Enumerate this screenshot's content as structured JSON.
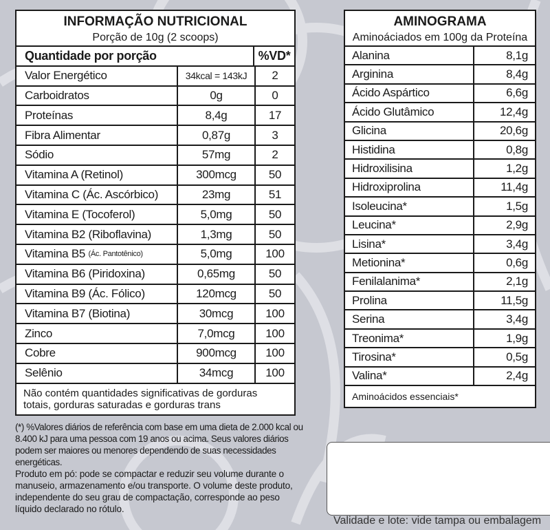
{
  "nutrition": {
    "title": "INFORMAÇÃO NUTRICIONAL",
    "serving": "Porção de 10g (2 scoops)",
    "header": {
      "label": "Quantidade por porção",
      "vd": "%VD*"
    },
    "rows": [
      {
        "name": "Valor Energético",
        "amount": "34kcal = 143kJ",
        "vd": "2"
      },
      {
        "name": "Carboidratos",
        "amount": "0g",
        "vd": "0"
      },
      {
        "name": "Proteínas",
        "amount": "8,4g",
        "vd": "17"
      },
      {
        "name": "Fibra Alimentar",
        "amount": "0,87g",
        "vd": "3"
      },
      {
        "name": "Sódio",
        "amount": "57mg",
        "vd": "2"
      },
      {
        "name": "Vitamina A (Retinol)",
        "amount": "300mcg",
        "vd": "50"
      },
      {
        "name": "Vitamina C (Ác. Ascórbico)",
        "amount": "23mg",
        "vd": "51"
      },
      {
        "name": "Vitamina E (Tocoferol)",
        "amount": "5,0mg",
        "vd": "50"
      },
      {
        "name": "Vitamina B2 (Riboflavina)",
        "amount": "1,3mg",
        "vd": "50"
      },
      {
        "name": "Vitamina B5",
        "name_small": "(Ác. Pantotênico)",
        "amount": "5,0mg",
        "vd": "100"
      },
      {
        "name": "Vitamina B6 (Piridoxina)",
        "amount": "0,65mg",
        "vd": "50"
      },
      {
        "name": "Vitamina B9 (Ác. Fólico)",
        "amount": "120mcg",
        "vd": "50"
      },
      {
        "name": "Vitamina B7 (Biotina)",
        "amount": "30mcg",
        "vd": "100"
      },
      {
        "name": "Zinco",
        "amount": "7,0mcg",
        "vd": "100"
      },
      {
        "name": "Cobre",
        "amount": "900mcg",
        "vd": "100"
      },
      {
        "name": "Selênio",
        "amount": "34mcg",
        "vd": "100"
      }
    ],
    "note": "Não contém quantidades significativas de gorduras totais, gorduras saturadas e gorduras trans"
  },
  "footnote": {
    "vd": "(*) %Valores diários de referência com base em uma dieta de 2.000 kcal ou 8.400 kJ para uma pessoa com 19 anos ou acima. Seus valores diários podem ser maiores ou menores dependendo de suas necessidades energéticas.",
    "powder": "Produto em pó: pode se compactar e reduzir seu volume durante o manuseio, armazenamento e/ou transporte. O volume deste produto, independente do seu grau de compactação, corresponde ao peso líquido declarado no rótulo."
  },
  "amino": {
    "title": "AMINOGRAMA",
    "subtitle": "Aminoáciados em 100g da Proteína",
    "rows": [
      {
        "name": "Alanina",
        "amount": "8,1g"
      },
      {
        "name": "Arginina",
        "amount": "8,4g"
      },
      {
        "name": "Ácido Aspártico",
        "amount": "6,6g"
      },
      {
        "name": "Ácido Glutâmico",
        "amount": "12,4g"
      },
      {
        "name": "Glicina",
        "amount": "20,6g"
      },
      {
        "name": "Histidina",
        "amount": "0,8g"
      },
      {
        "name": "Hidroxilisina",
        "amount": "1,2g"
      },
      {
        "name": "Hidroxiprolina",
        "amount": "11,4g"
      },
      {
        "name": "Isoleucina*",
        "amount": "1,5g"
      },
      {
        "name": "Leucina*",
        "amount": "2,9g"
      },
      {
        "name": "Lisina*",
        "amount": "3,4g"
      },
      {
        "name": "Metionina*",
        "amount": "0,6g"
      },
      {
        "name": "Fenilalanima*",
        "amount": "2,1g"
      },
      {
        "name": "Prolina",
        "amount": "11,5g"
      },
      {
        "name": "Serina",
        "amount": "3,4g"
      },
      {
        "name": "Treonima*",
        "amount": "1,9g"
      },
      {
        "name": "Tirosina*",
        "amount": "0,5g"
      },
      {
        "name": "Valina*",
        "amount": "2,4g"
      }
    ],
    "footer": "Aminoácidos essenciais*"
  },
  "validity": "Validade e lote: vide tampa ou embalagem"
}
